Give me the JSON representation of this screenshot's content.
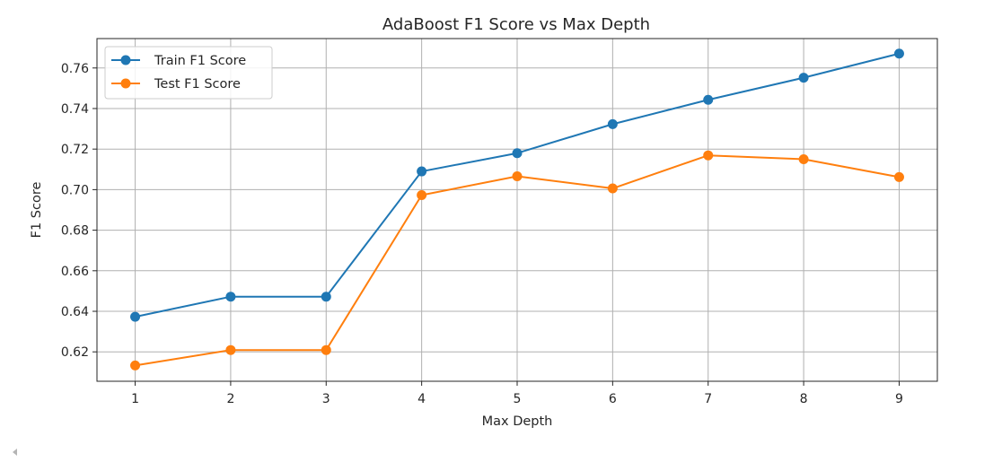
{
  "chart_data": {
    "type": "line",
    "title": "AdaBoost F1 Score vs Max Depth",
    "xlabel": "Max Depth",
    "ylabel": "F1 Score",
    "x": [
      1,
      2,
      3,
      4,
      5,
      6,
      7,
      8,
      9
    ],
    "xticks": [
      "1",
      "2",
      "3",
      "4",
      "5",
      "6",
      "7",
      "8",
      "9"
    ],
    "xlim": [
      0.6,
      9.4
    ],
    "yticks": [
      "0.62",
      "0.64",
      "0.66",
      "0.68",
      "0.70",
      "0.72",
      "0.74",
      "0.76"
    ],
    "ytick_values": [
      0.62,
      0.64,
      0.66,
      0.68,
      0.7,
      0.72,
      0.74,
      0.76
    ],
    "ylim": [
      0.6055,
      0.7745
    ],
    "grid": true,
    "legend_position": "upper-left",
    "series": [
      {
        "name": "Train F1 Score",
        "color": "#1f77b4",
        "values": [
          0.6373,
          0.6472,
          0.6472,
          0.709,
          0.718,
          0.7323,
          0.7443,
          0.7552,
          0.7671
        ]
      },
      {
        "name": "Test F1 Score",
        "color": "#ff7f0e",
        "values": [
          0.6133,
          0.6209,
          0.6209,
          0.6973,
          0.7066,
          0.7006,
          0.7169,
          0.715,
          0.7062
        ]
      }
    ]
  }
}
